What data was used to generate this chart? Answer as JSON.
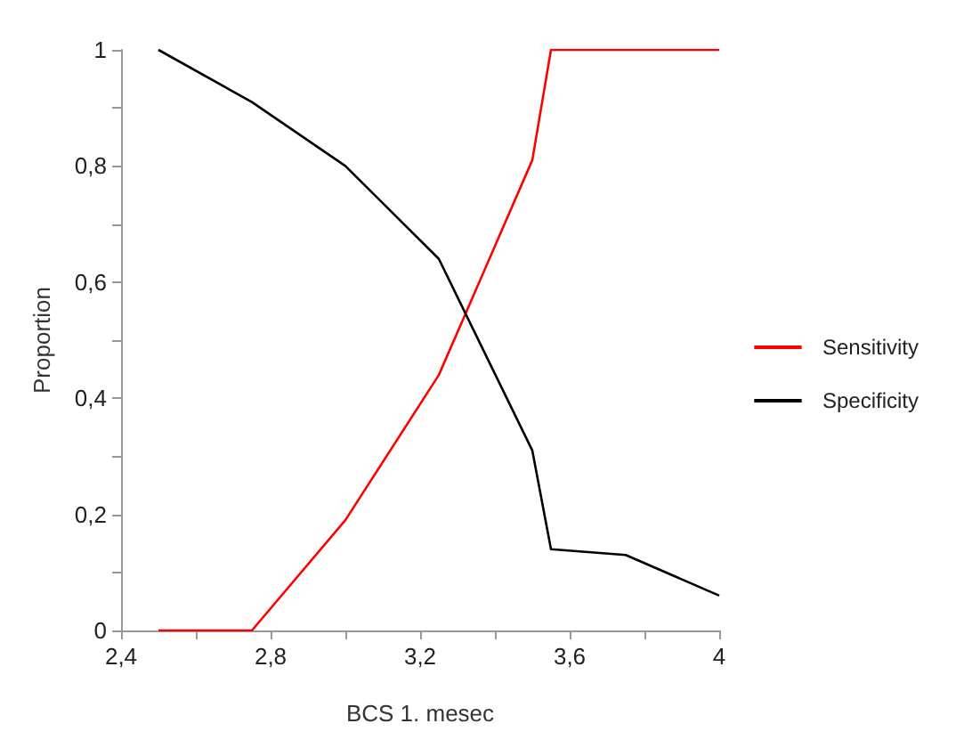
{
  "chart_data": {
    "type": "line",
    "xlabel": "BCS 1. mesec",
    "ylabel": "Proportion",
    "xlim": [
      2.4,
      4
    ],
    "xticks": [
      {
        "value": 2.4,
        "label": "2,4"
      },
      {
        "value": 2.6,
        "label": null
      },
      {
        "value": 2.8,
        "label": "2,8"
      },
      {
        "value": 3.0,
        "label": null
      },
      {
        "value": 3.2,
        "label": "3,2"
      },
      {
        "value": 3.4,
        "label": null
      },
      {
        "value": 3.6,
        "label": "3,6"
      },
      {
        "value": 3.8,
        "label": null
      },
      {
        "value": 4,
        "label": "4"
      }
    ],
    "ylim": [
      0,
      1
    ],
    "yticks": [
      {
        "value": 0,
        "label": "0"
      },
      {
        "value": 0.1,
        "label": null
      },
      {
        "value": 0.2,
        "label": "0,2"
      },
      {
        "value": 0.3,
        "label": null
      },
      {
        "value": 0.4,
        "label": "0,4"
      },
      {
        "value": 0.5,
        "label": null
      },
      {
        "value": 0.6,
        "label": "0,6"
      },
      {
        "value": 0.7,
        "label": null
      },
      {
        "value": 0.8,
        "label": "0,8"
      },
      {
        "value": 0.9,
        "label": null
      },
      {
        "value": 1,
        "label": "1"
      }
    ],
    "legend": "right",
    "grid": false,
    "marker": "none",
    "series": [
      {
        "name": "Sensitivity",
        "color": "#ff0000",
        "x": [
          2.5,
          2.75,
          3.0,
          3.25,
          3.5,
          3.55,
          4.0
        ],
        "values": [
          0,
          0,
          0.19,
          0.44,
          0.81,
          1,
          1
        ]
      },
      {
        "name": "Specificity",
        "color": "#000000",
        "x": [
          2.5,
          2.75,
          3.0,
          3.25,
          3.5,
          3.55,
          3.75,
          4.0
        ],
        "values": [
          1,
          0.91,
          0.8,
          0.64,
          0.31,
          0.14,
          0.13,
          0.06
        ]
      }
    ]
  }
}
